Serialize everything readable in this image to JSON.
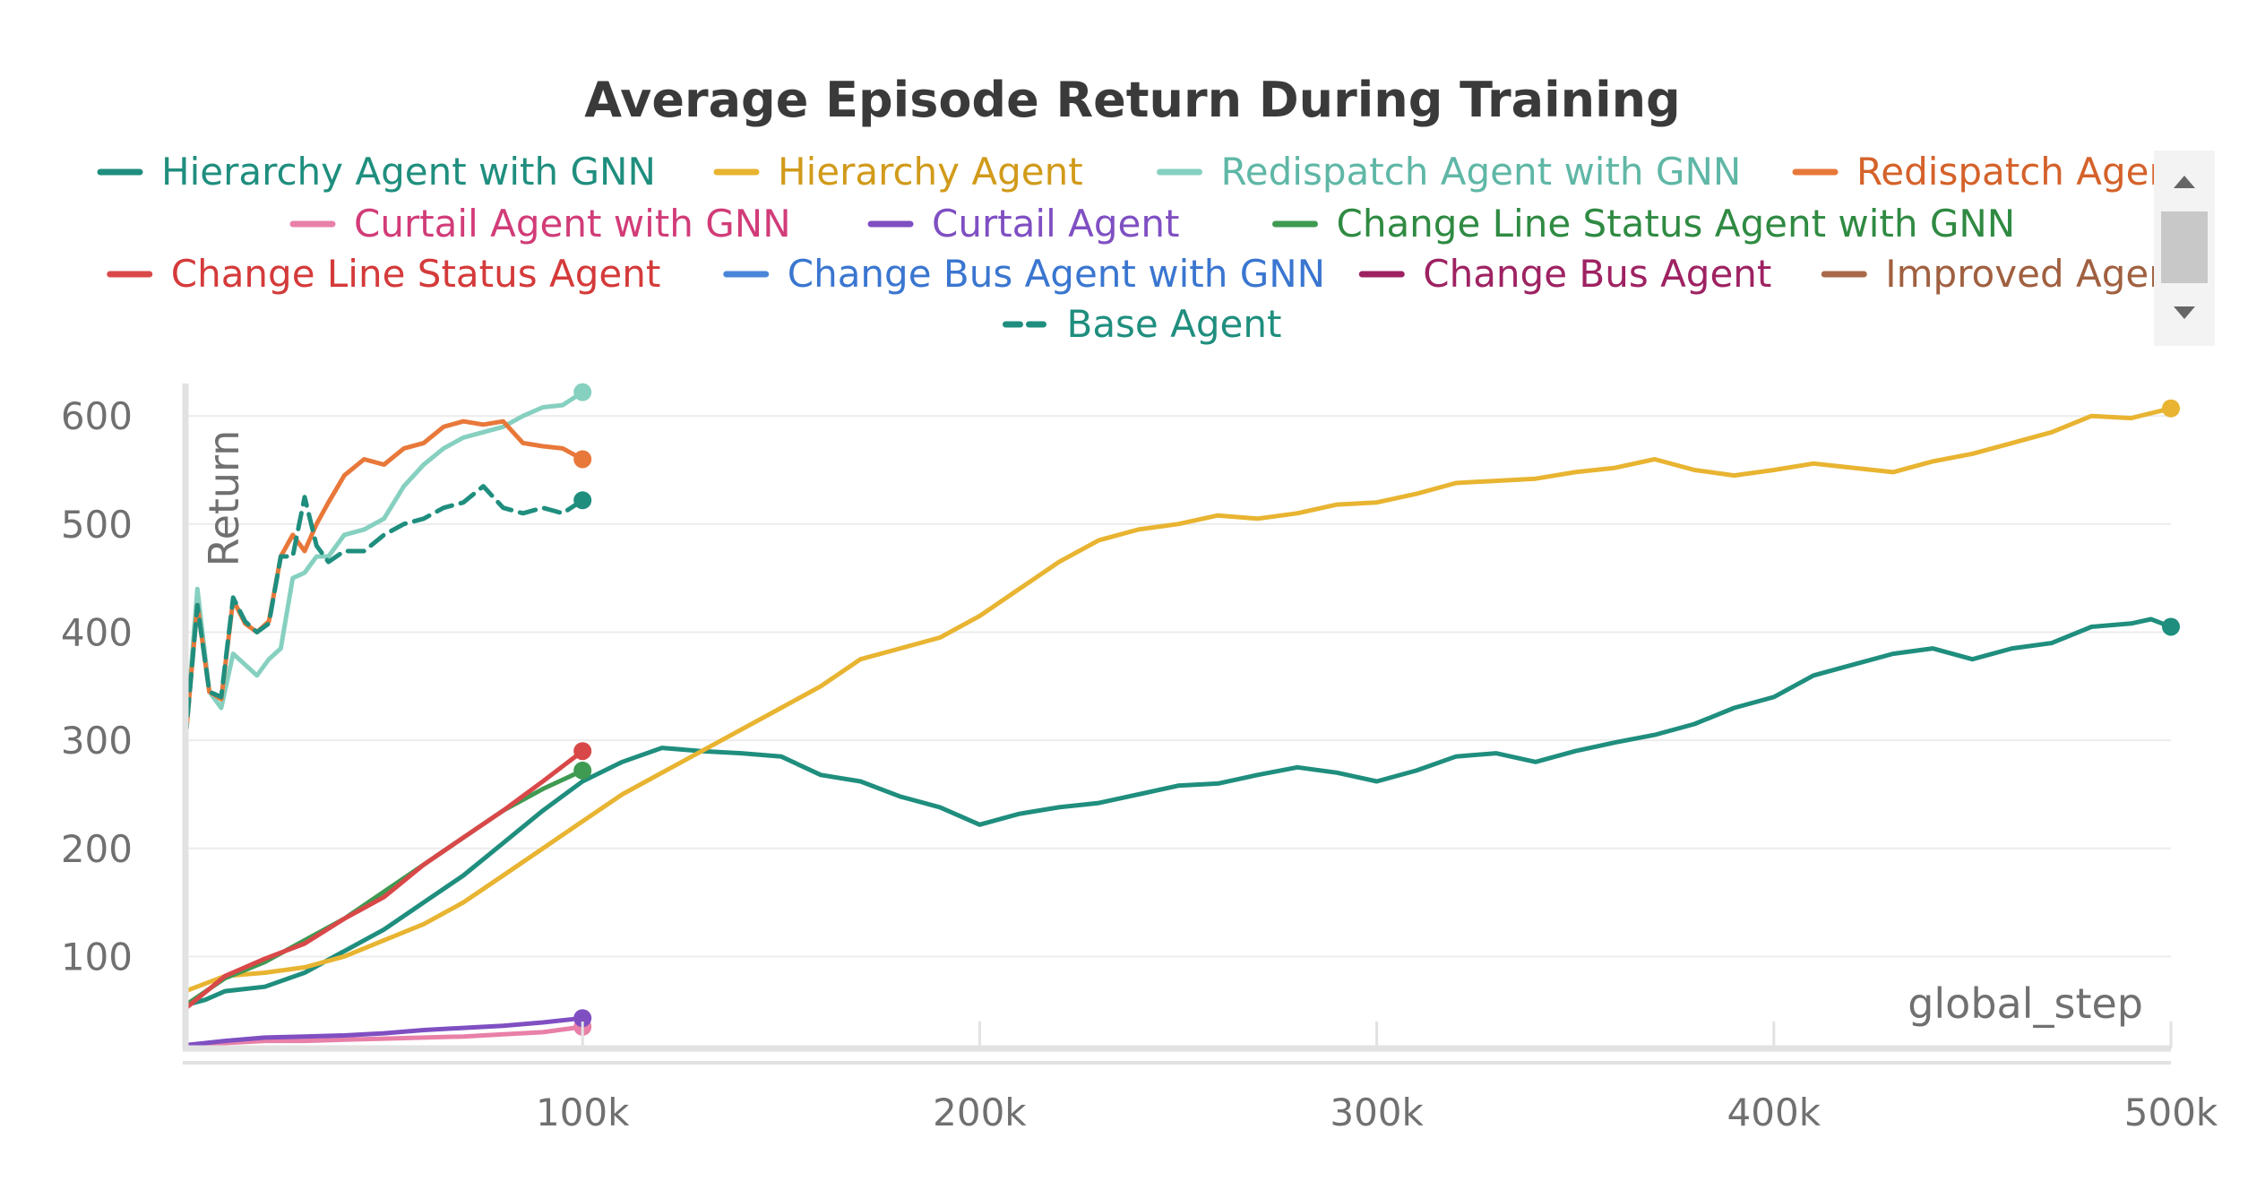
{
  "chart_data": {
    "type": "line",
    "title": "Average Episode Return During Training",
    "xlabel": "global_step",
    "ylabel": "Return",
    "xlim": [
      0,
      500000
    ],
    "ylim": [
      15,
      630
    ],
    "x_ticks": [
      {
        "value": 100000,
        "label": "100k"
      },
      {
        "value": 200000,
        "label": "200k"
      },
      {
        "value": 300000,
        "label": "300k"
      },
      {
        "value": 400000,
        "label": "400k"
      },
      {
        "value": 500000,
        "label": "500k"
      }
    ],
    "y_ticks": [
      {
        "value": 100,
        "label": "100"
      },
      {
        "value": 200,
        "label": "200"
      },
      {
        "value": 300,
        "label": "300"
      },
      {
        "value": 400,
        "label": "400"
      },
      {
        "value": 500,
        "label": "500"
      },
      {
        "value": 600,
        "label": "600"
      }
    ],
    "grid": true,
    "legend_position": "top",
    "series": [
      {
        "name": "Hierarchy Agent with GNN",
        "color": "#1f8e7e",
        "label_color": "#1f8e7e",
        "dashed": false,
        "x": [
          0,
          5000,
          10000,
          20000,
          30000,
          40000,
          50000,
          60000,
          70000,
          80000,
          90000,
          100000,
          110000,
          120000,
          130000,
          140000,
          150000,
          160000,
          170000,
          180000,
          190000,
          200000,
          210000,
          220000,
          230000,
          240000,
          250000,
          260000,
          270000,
          280000,
          290000,
          300000,
          310000,
          320000,
          330000,
          340000,
          350000,
          360000,
          370000,
          380000,
          390000,
          400000,
          410000,
          420000,
          430000,
          440000,
          450000,
          460000,
          470000,
          480000,
          490000,
          495000,
          500000
        ],
        "y": [
          55,
          60,
          68,
          72,
          85,
          105,
          125,
          150,
          175,
          205,
          235,
          262,
          280,
          293,
          290,
          288,
          285,
          268,
          262,
          248,
          238,
          222,
          232,
          238,
          242,
          250,
          258,
          260,
          268,
          275,
          270,
          262,
          272,
          285,
          288,
          280,
          290,
          298,
          305,
          315,
          330,
          340,
          360,
          370,
          380,
          385,
          375,
          385,
          390,
          405,
          408,
          412,
          405
        ]
      },
      {
        "name": "Hierarchy Agent",
        "color": "#e8b431",
        "label_color": "#d19a1a",
        "dashed": false,
        "x": [
          0,
          10000,
          20000,
          30000,
          40000,
          50000,
          60000,
          70000,
          80000,
          90000,
          100000,
          110000,
          120000,
          130000,
          140000,
          150000,
          160000,
          170000,
          180000,
          190000,
          200000,
          210000,
          220000,
          230000,
          240000,
          250000,
          260000,
          270000,
          280000,
          290000,
          300000,
          310000,
          320000,
          330000,
          340000,
          350000,
          360000,
          370000,
          380000,
          390000,
          400000,
          410000,
          420000,
          430000,
          440000,
          450000,
          460000,
          470000,
          480000,
          490000,
          500000
        ],
        "y": [
          68,
          82,
          85,
          90,
          100,
          115,
          130,
          150,
          175,
          200,
          225,
          250,
          270,
          290,
          310,
          330,
          350,
          375,
          385,
          395,
          415,
          440,
          465,
          485,
          495,
          500,
          508,
          505,
          510,
          518,
          520,
          528,
          538,
          540,
          542,
          548,
          552,
          560,
          550,
          545,
          550,
          556,
          552,
          548,
          558,
          565,
          575,
          585,
          600,
          598,
          607
        ]
      },
      {
        "name": "Redispatch Agent with GNN",
        "color": "#86d0c0",
        "label_color": "#5fb7a6",
        "dashed": false,
        "x": [
          0,
          3000,
          6000,
          9000,
          12000,
          15000,
          18000,
          21000,
          24000,
          27000,
          30000,
          33000,
          36000,
          40000,
          45000,
          50000,
          55000,
          60000,
          65000,
          70000,
          75000,
          80000,
          85000,
          90000,
          95000,
          100000
        ],
        "y": [
          300,
          440,
          345,
          330,
          380,
          370,
          360,
          375,
          385,
          450,
          455,
          470,
          470,
          490,
          495,
          505,
          535,
          555,
          570,
          580,
          585,
          590,
          600,
          608,
          610,
          622
        ]
      },
      {
        "name": "Redispatch Agent",
        "color": "#e8783a",
        "label_color": "#d4622a",
        "dashed": false,
        "x": [
          0,
          3000,
          6000,
          9000,
          12000,
          15000,
          18000,
          21000,
          24000,
          27000,
          30000,
          33000,
          36000,
          40000,
          45000,
          50000,
          55000,
          60000,
          65000,
          70000,
          75000,
          80000,
          85000,
          90000,
          95000,
          100000
        ],
        "y": [
          300,
          425,
          345,
          338,
          430,
          408,
          400,
          410,
          470,
          490,
          475,
          500,
          520,
          545,
          560,
          555,
          570,
          575,
          590,
          595,
          592,
          595,
          575,
          572,
          570,
          560
        ]
      },
      {
        "name": "Curtail Agent with GNN",
        "color": "#e880a8",
        "label_color": "#d13c78",
        "dashed": false,
        "x": [
          0,
          10000,
          20000,
          30000,
          40000,
          50000,
          60000,
          70000,
          80000,
          90000,
          100000
        ],
        "y": [
          18,
          20,
          22,
          22,
          23,
          24,
          25,
          26,
          28,
          30,
          35
        ]
      },
      {
        "name": "Curtail Agent",
        "color": "#7f4fc2",
        "label_color": "#7f4fc2",
        "dashed": false,
        "x": [
          0,
          10000,
          20000,
          30000,
          40000,
          50000,
          60000,
          70000,
          80000,
          90000,
          100000
        ],
        "y": [
          18,
          22,
          25,
          26,
          27,
          29,
          32,
          34,
          36,
          39,
          43
        ]
      },
      {
        "name": "Change Line Status Agent with GNN",
        "color": "#3f9a52",
        "label_color": "#2f8a42",
        "dashed": false,
        "x": [
          0,
          10000,
          20000,
          30000,
          40000,
          50000,
          60000,
          70000,
          80000,
          90000,
          100000
        ],
        "y": [
          55,
          80,
          95,
          115,
          135,
          160,
          185,
          210,
          235,
          255,
          272
        ]
      },
      {
        "name": "Change Line Status Agent",
        "color": "#d94848",
        "label_color": "#d43a3a",
        "dashed": false,
        "x": [
          0,
          10000,
          20000,
          30000,
          40000,
          50000,
          60000,
          70000,
          80000,
          90000,
          100000
        ],
        "y": [
          52,
          82,
          98,
          112,
          135,
          155,
          185,
          210,
          235,
          262,
          290
        ]
      },
      {
        "name": "Change Bus Agent with GNN",
        "color": "#4a86d8",
        "label_color": "#3a76d0",
        "dashed": false,
        "x": [],
        "y": []
      },
      {
        "name": "Change Bus Agent",
        "color": "#9e2262",
        "label_color": "#9e2262",
        "dashed": false,
        "x": [],
        "y": []
      },
      {
        "name": "Improved Agent",
        "color": "#a86a48",
        "label_color": "#a06040",
        "dashed": false,
        "x": [],
        "y": []
      },
      {
        "name": "Base Agent",
        "color": "#1f8e7e",
        "label_color": "#1f8e7e",
        "dashed": true,
        "x": [
          0,
          3000,
          6000,
          9000,
          12000,
          15000,
          18000,
          21000,
          24000,
          27000,
          30000,
          33000,
          36000,
          40000,
          45000,
          50000,
          55000,
          60000,
          65000,
          70000,
          75000,
          80000,
          85000,
          90000,
          95000,
          100000
        ],
        "y": [
          300,
          425,
          345,
          340,
          432,
          410,
          400,
          408,
          470,
          470,
          525,
          480,
          465,
          475,
          475,
          490,
          500,
          505,
          515,
          520,
          535,
          515,
          510,
          515,
          510,
          522
        ]
      }
    ]
  }
}
